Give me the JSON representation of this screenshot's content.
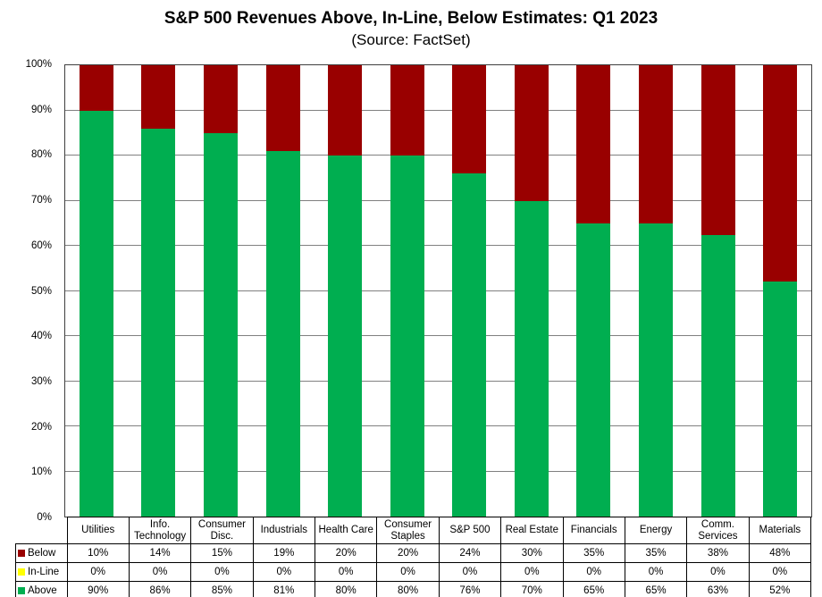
{
  "title": "S&P 500 Revenues Above, In-Line, Below Estimates: Q1 2023",
  "subtitle": "(Source: FactSet)",
  "colors": {
    "above": "#00AE50",
    "inline": "#FFFF00",
    "below": "#990000",
    "gridline": "#808080",
    "axis": "#3f3f3f"
  },
  "chart_data": {
    "type": "bar",
    "stacked": true,
    "grid": "horizontal",
    "legend_position": "table-left",
    "title": "S&P 500 Revenues Above, In-Line, Below Estimates: Q1 2023",
    "subtitle": "(Source: FactSet)",
    "xlabel": "",
    "ylabel": "",
    "ylim": [
      0,
      100
    ],
    "yticks": [
      "0%",
      "10%",
      "20%",
      "30%",
      "40%",
      "50%",
      "60%",
      "70%",
      "80%",
      "90%",
      "100%"
    ],
    "categories": [
      "Utilities",
      "Info. Technology",
      "Consumer Disc.",
      "Industrials",
      "Health Care",
      "Consumer Staples",
      "S&P 500",
      "Real Estate",
      "Financials",
      "Energy",
      "Comm. Services",
      "Materials"
    ],
    "series": [
      {
        "name": "Below",
        "color": "#990000",
        "values": [
          10,
          14,
          15,
          19,
          20,
          20,
          24,
          30,
          35,
          35,
          38,
          48
        ]
      },
      {
        "name": "In-Line",
        "color": "#FFFF00",
        "values": [
          0,
          0,
          0,
          0,
          0,
          0,
          0,
          0,
          0,
          0,
          0,
          0
        ]
      },
      {
        "name": "Above",
        "color": "#00AE50",
        "values": [
          90,
          86,
          85,
          81,
          80,
          80,
          76,
          70,
          65,
          65,
          63,
          52
        ]
      }
    ]
  }
}
